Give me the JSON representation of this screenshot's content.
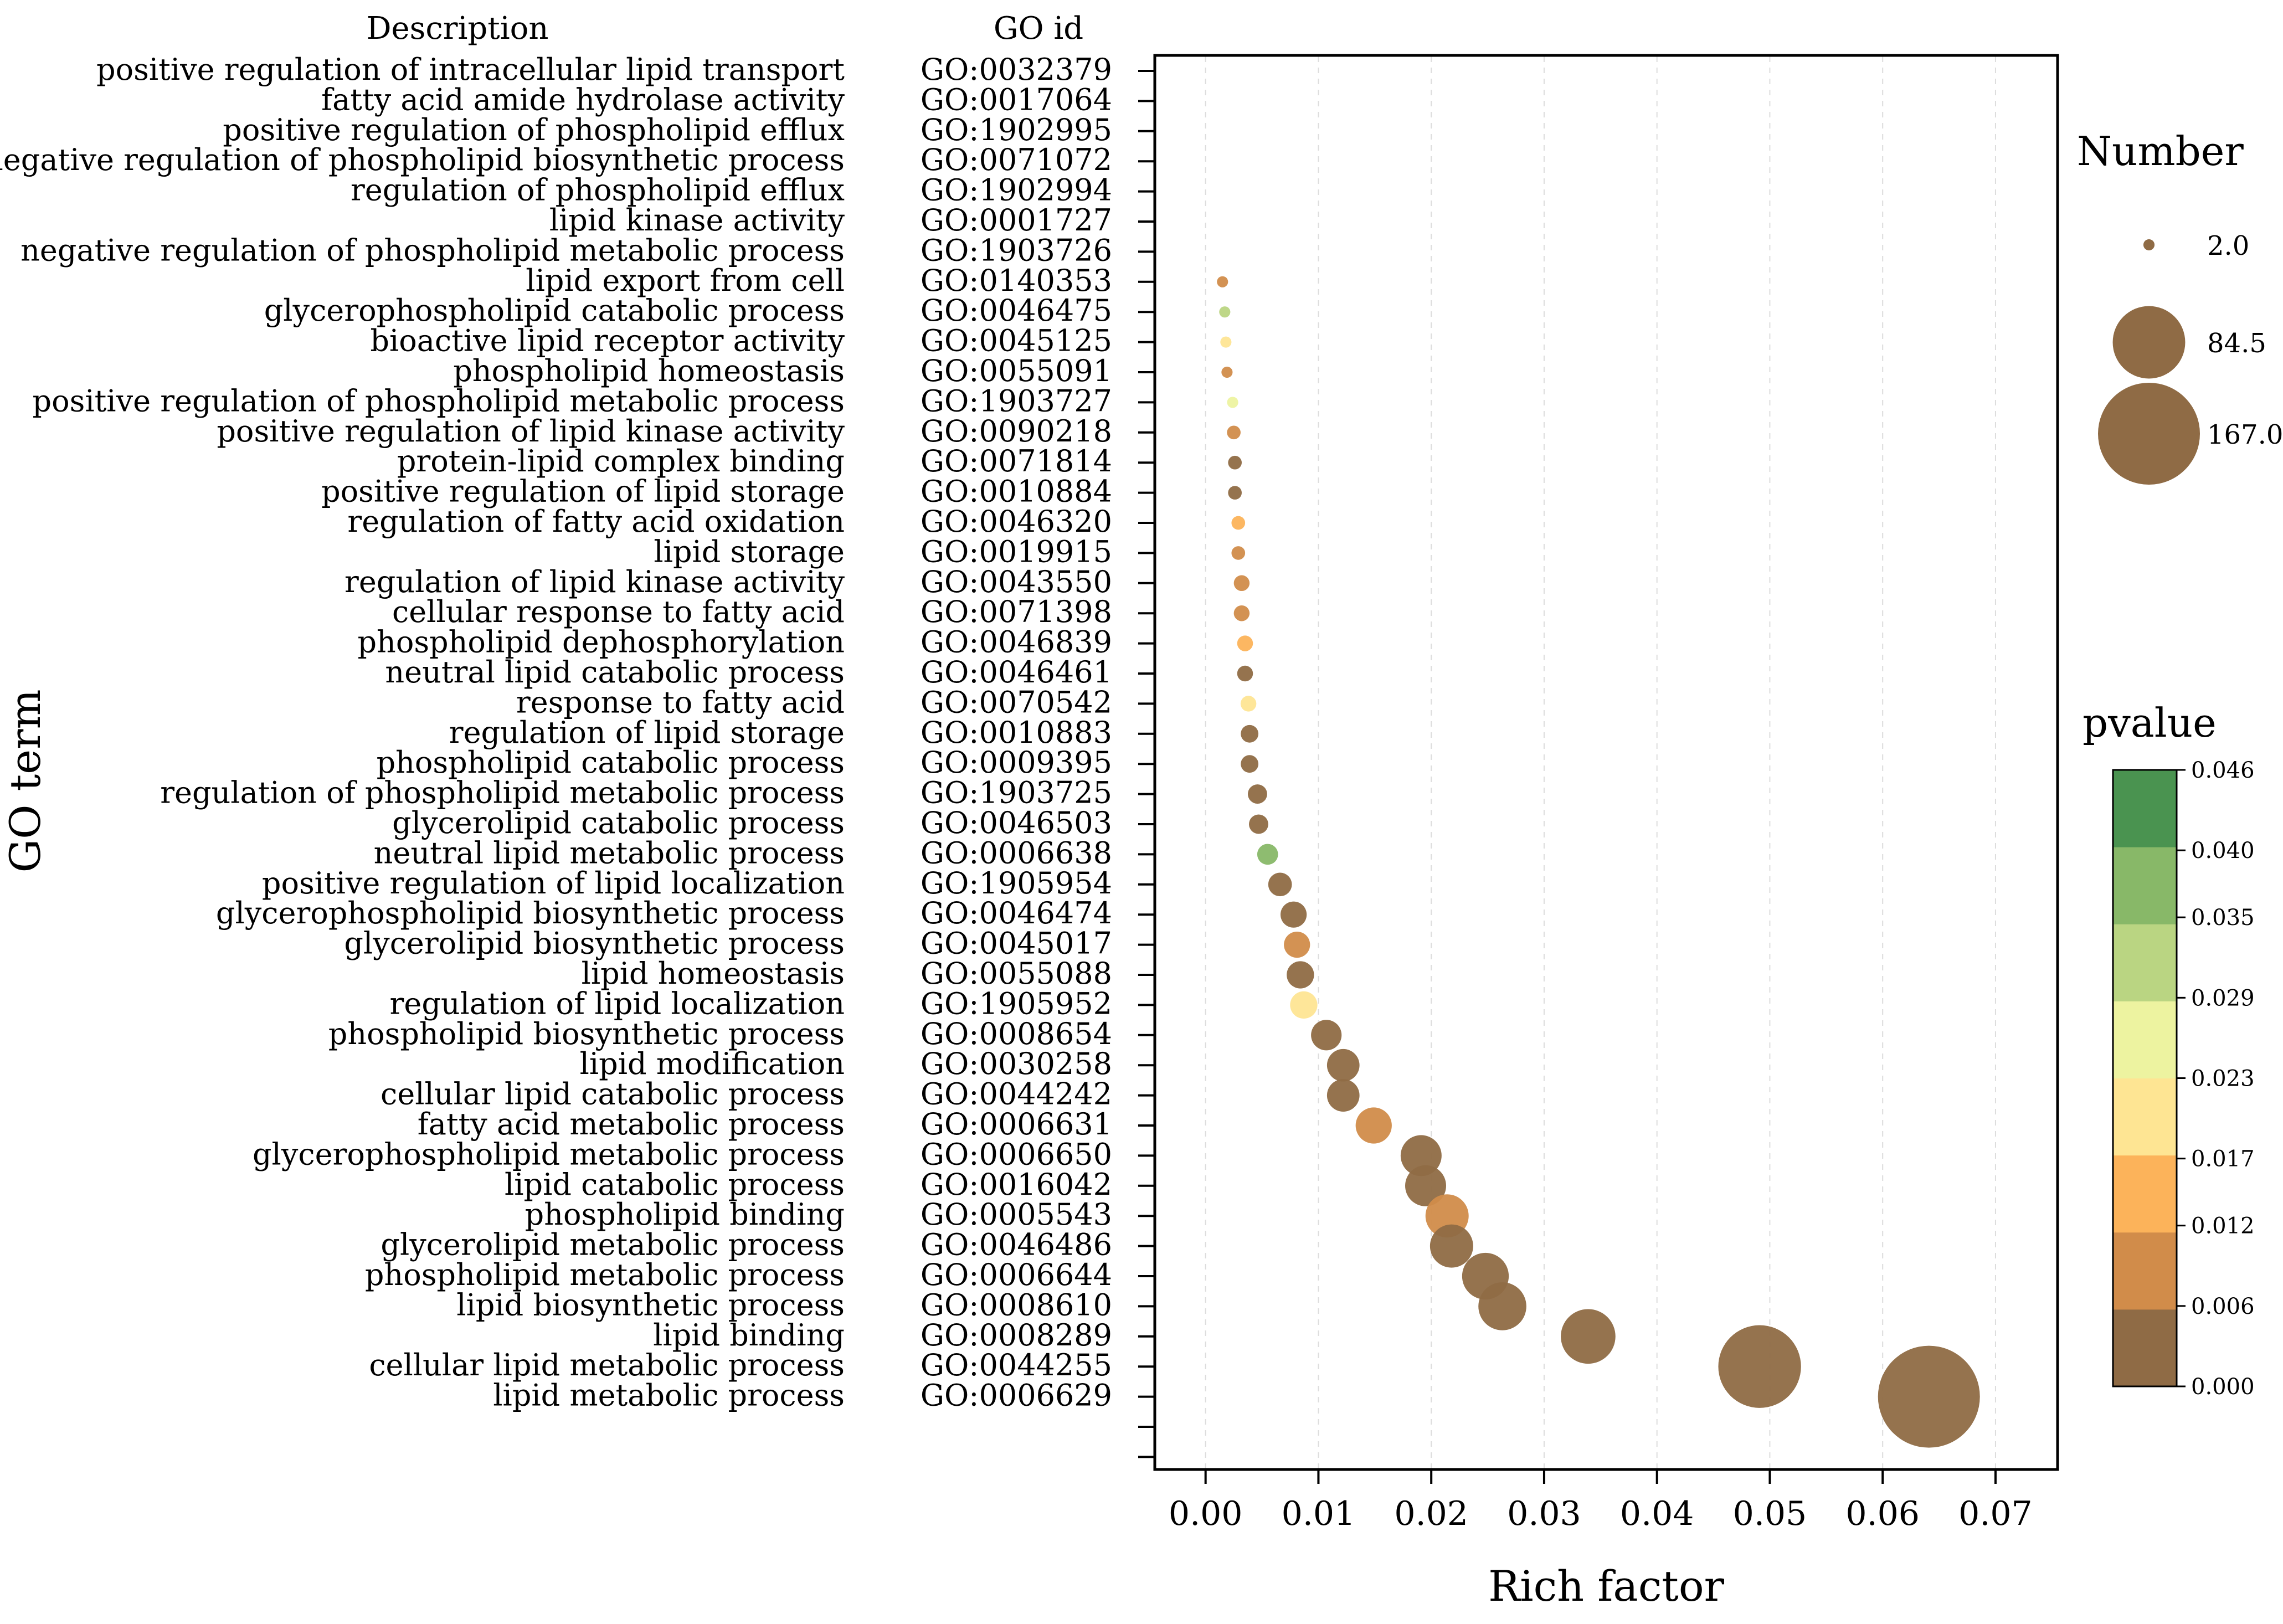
{
  "chart_data": {
    "type": "scatter",
    "title": "",
    "xlabel": "Rich factor",
    "ylabel": "GO term",
    "xlim": [
      -0.0045,
      0.0755
    ],
    "xticks": [
      "0.00",
      "0.01",
      "0.02",
      "0.03",
      "0.04",
      "0.05",
      "0.06",
      "0.07"
    ],
    "xtick_values": [
      0,
      0.01,
      0.02,
      0.03,
      0.04,
      0.05,
      0.06,
      0.07
    ],
    "grid": "vertical dashed",
    "column_headers": {
      "description": "Description",
      "go_id": "GO id"
    },
    "terms": [
      {
        "description": "positive regulation of intracellular lipid transport",
        "go_id": "GO:0032379",
        "rich_factor": null,
        "number": null,
        "pvalue": null
      },
      {
        "description": "fatty acid amide hydrolase activity",
        "go_id": "GO:0017064",
        "rich_factor": null,
        "number": null,
        "pvalue": null
      },
      {
        "description": "positive regulation of phospholipid efflux",
        "go_id": "GO:1902995",
        "rich_factor": null,
        "number": null,
        "pvalue": null
      },
      {
        "description": "negative regulation of phospholipid biosynthetic process",
        "go_id": "GO:0071072",
        "rich_factor": null,
        "number": null,
        "pvalue": null
      },
      {
        "description": "regulation of phospholipid efflux",
        "go_id": "GO:1902994",
        "rich_factor": null,
        "number": null,
        "pvalue": null
      },
      {
        "description": "lipid kinase activity",
        "go_id": "GO:0001727",
        "rich_factor": null,
        "number": null,
        "pvalue": null
      },
      {
        "description": "negative regulation of phospholipid metabolic process",
        "go_id": "GO:1903726",
        "rich_factor": null,
        "number": null,
        "pvalue": null
      },
      {
        "description": "lipid export from cell",
        "go_id": "GO:0140353",
        "rich_factor": 0.0015,
        "number": 2,
        "pvalue": 0.01
      },
      {
        "description": "glycerophospholipid catabolic process",
        "go_id": "GO:0046475",
        "rich_factor": 0.0017,
        "number": 2,
        "pvalue": 0.032
      },
      {
        "description": "bioactive lipid receptor activity",
        "go_id": "GO:0045125",
        "rich_factor": 0.0018,
        "number": 2,
        "pvalue": 0.02
      },
      {
        "description": "phospholipid homeostasis",
        "go_id": "GO:0055091",
        "rich_factor": 0.0019,
        "number": 2,
        "pvalue": 0.01
      },
      {
        "description": "positive regulation of phospholipid metabolic process",
        "go_id": "GO:1903727",
        "rich_factor": 0.0024,
        "number": 2,
        "pvalue": 0.026
      },
      {
        "description": "positive regulation of lipid kinase activity",
        "go_id": "GO:0090218",
        "rich_factor": 0.0025,
        "number": 3,
        "pvalue": 0.007
      },
      {
        "description": "protein-lipid complex binding",
        "go_id": "GO:0071814",
        "rich_factor": 0.0026,
        "number": 3,
        "pvalue": 0.002
      },
      {
        "description": "positive regulation of lipid storage",
        "go_id": "GO:0010884",
        "rich_factor": 0.0026,
        "number": 3,
        "pvalue": 0.003
      },
      {
        "description": "regulation of fatty acid oxidation",
        "go_id": "GO:0046320",
        "rich_factor": 0.0029,
        "number": 3,
        "pvalue": 0.014
      },
      {
        "description": "lipid storage",
        "go_id": "GO:0019915",
        "rich_factor": 0.0029,
        "number": 3,
        "pvalue": 0.008
      },
      {
        "description": "regulation of lipid kinase activity",
        "go_id": "GO:0043550",
        "rich_factor": 0.0032,
        "number": 4,
        "pvalue": 0.009
      },
      {
        "description": "cellular response to fatty acid",
        "go_id": "GO:0071398",
        "rich_factor": 0.0032,
        "number": 4,
        "pvalue": 0.009
      },
      {
        "description": "phospholipid dephosphorylation",
        "go_id": "GO:0046839",
        "rich_factor": 0.0035,
        "number": 4,
        "pvalue": 0.014
      },
      {
        "description": "neutral lipid catabolic process",
        "go_id": "GO:0046461",
        "rich_factor": 0.0035,
        "number": 4,
        "pvalue": 0.004
      },
      {
        "description": "response to fatty acid",
        "go_id": "GO:0070542",
        "rich_factor": 0.0038,
        "number": 4,
        "pvalue": 0.022
      },
      {
        "description": "regulation of lipid storage",
        "go_id": "GO:0010883",
        "rich_factor": 0.0039,
        "number": 5,
        "pvalue": 0.004
      },
      {
        "description": "phospholipid catabolic process",
        "go_id": "GO:0009395",
        "rich_factor": 0.0039,
        "number": 5,
        "pvalue": 0.002
      },
      {
        "description": "regulation of phospholipid metabolic process",
        "go_id": "GO:1903725",
        "rich_factor": 0.0046,
        "number": 6,
        "pvalue": 0.004
      },
      {
        "description": "glycerolipid catabolic process",
        "go_id": "GO:0046503",
        "rich_factor": 0.0047,
        "number": 6,
        "pvalue": 0.003
      },
      {
        "description": "neutral lipid metabolic process",
        "go_id": "GO:0006638",
        "rich_factor": 0.0055,
        "number": 7,
        "pvalue": 0.038
      },
      {
        "description": "positive regulation of lipid localization",
        "go_id": "GO:1905954",
        "rich_factor": 0.0066,
        "number": 9,
        "pvalue": 0.004
      },
      {
        "description": "glycerophospholipid biosynthetic process",
        "go_id": "GO:0046474",
        "rich_factor": 0.0078,
        "number": 11,
        "pvalue": 0.002
      },
      {
        "description": "glycerolipid biosynthetic process",
        "go_id": "GO:0045017",
        "rich_factor": 0.0081,
        "number": 11,
        "pvalue": 0.009
      },
      {
        "description": "lipid homeostasis",
        "go_id": "GO:0055088",
        "rich_factor": 0.0084,
        "number": 12,
        "pvalue": 0.002
      },
      {
        "description": "regulation of lipid localization",
        "go_id": "GO:1905952",
        "rich_factor": 0.0087,
        "number": 12,
        "pvalue": 0.021
      },
      {
        "description": "phospholipid biosynthetic process",
        "go_id": "GO:0008654",
        "rich_factor": 0.0107,
        "number": 15,
        "pvalue": 0.002
      },
      {
        "description": "lipid modification",
        "go_id": "GO:0030258",
        "rich_factor": 0.0122,
        "number": 17,
        "pvalue": 0.002
      },
      {
        "description": "cellular lipid catabolic process",
        "go_id": "GO:0044242",
        "rich_factor": 0.0122,
        "number": 17,
        "pvalue": 0.002
      },
      {
        "description": "fatty acid metabolic process",
        "go_id": "GO:0006631",
        "rich_factor": 0.0149,
        "number": 21,
        "pvalue": 0.01
      },
      {
        "description": "glycerophospholipid metabolic process",
        "go_id": "GO:0006650",
        "rich_factor": 0.0191,
        "number": 27,
        "pvalue": 0.002
      },
      {
        "description": "lipid catabolic process",
        "go_id": "GO:0016042",
        "rich_factor": 0.0195,
        "number": 27,
        "pvalue": 0.002
      },
      {
        "description": "phospholipid binding",
        "go_id": "GO:0005543",
        "rich_factor": 0.0214,
        "number": 30,
        "pvalue": 0.01
      },
      {
        "description": "glycerolipid metabolic process",
        "go_id": "GO:0046486",
        "rich_factor": 0.0218,
        "number": 30,
        "pvalue": 0.002
      },
      {
        "description": "phospholipid metabolic process",
        "go_id": "GO:0006644",
        "rich_factor": 0.0248,
        "number": 35,
        "pvalue": 0.002
      },
      {
        "description": "lipid biosynthetic process",
        "go_id": "GO:0008610",
        "rich_factor": 0.0263,
        "number": 37,
        "pvalue": 0.002
      },
      {
        "description": "lipid binding",
        "go_id": "GO:0008289",
        "rich_factor": 0.0339,
        "number": 48,
        "pvalue": 0.002
      },
      {
        "description": "cellular lipid metabolic process",
        "go_id": "GO:0044255",
        "rich_factor": 0.0491,
        "number": 110,
        "pvalue": 0.002
      },
      {
        "description": "lipid metabolic process",
        "go_id": "GO:0006629",
        "rich_factor": 0.0641,
        "number": 167,
        "pvalue": 0.002
      }
    ],
    "size_legend": {
      "title": "Number",
      "entries": [
        {
          "label": "2.0",
          "value": 2
        },
        {
          "label": "84.5",
          "value": 84.5
        },
        {
          "label": "167.0",
          "value": 167
        }
      ]
    },
    "color_legend": {
      "title": "pvalue",
      "range": [
        0.0,
        0.046
      ],
      "ticks": [
        {
          "label": "0.046",
          "value": 0.046
        },
        {
          "label": "0.040",
          "value": 0.04
        },
        {
          "label": "0.035",
          "value": 0.035
        },
        {
          "label": "0.029",
          "value": 0.029
        },
        {
          "label": "0.023",
          "value": 0.023
        },
        {
          "label": "0.017",
          "value": 0.017
        },
        {
          "label": "0.012",
          "value": 0.012
        },
        {
          "label": "0.006",
          "value": 0.006
        },
        {
          "label": "0.000",
          "value": 0.0
        }
      ],
      "bands_low_to_high": [
        "#8f6b45",
        "#d18c4a",
        "#fcb35a",
        "#fee593",
        "#edf3a0",
        "#bad582",
        "#88b868",
        "#4a9350"
      ]
    },
    "marker_color": "#8f6b45"
  }
}
